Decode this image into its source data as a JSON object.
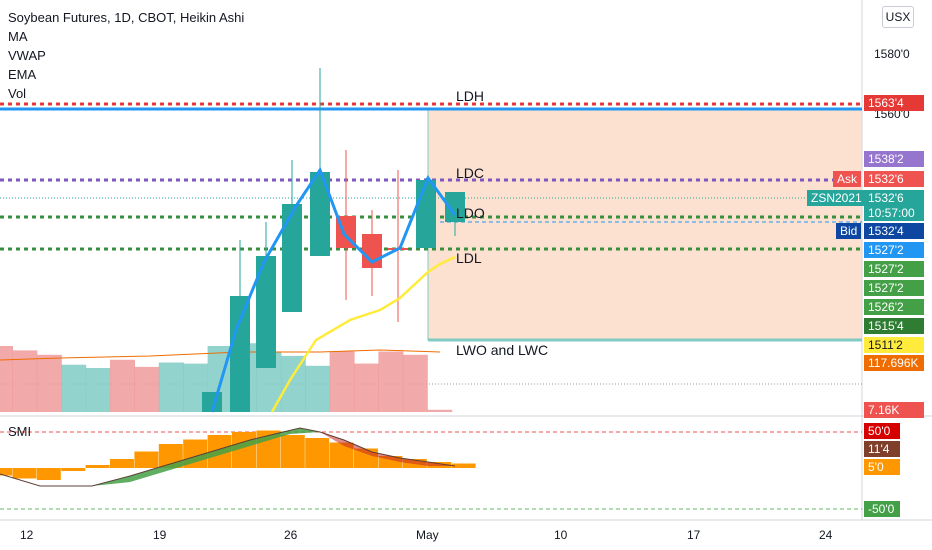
{
  "legend": {
    "title": "Soybean Futures, 1D, CBOT, Heikin Ashi",
    "indicators": [
      "MA",
      "VWAP",
      "EMA",
      "Vol"
    ]
  },
  "currency": "USX",
  "smi_label": "SMI",
  "annotations": {
    "ldh": "LDH",
    "ldc": "LDC",
    "ldo": "LDO",
    "ldl": "LDL",
    "lwo": "LWO and LWC"
  },
  "price_axis": {
    "ticks": [
      "1580'0",
      "1560'0"
    ]
  },
  "x_axis": {
    "labels": [
      "12",
      "19",
      "26",
      "May",
      "10",
      "17",
      "24"
    ]
  },
  "price_labels": [
    {
      "text": "1563'4",
      "color": "#e53935"
    },
    {
      "text": "1538'2",
      "color": "#9575cd"
    },
    {
      "text": "1532'6",
      "color": "#ef5350",
      "tag": "Ask"
    },
    {
      "text": "1532'6",
      "color": "#26a69a",
      "tag": "ZSN2021"
    },
    {
      "text": "10:57:00",
      "color": "#26a69a"
    },
    {
      "text": "1532'4",
      "color": "#0d47a1",
      "tag": "Bid"
    },
    {
      "text": "1527'2",
      "color": "#2196f3"
    },
    {
      "text": "1527'2",
      "color": "#43a047"
    },
    {
      "text": "1527'2",
      "color": "#43a047"
    },
    {
      "text": "1526'2",
      "color": "#43a047"
    },
    {
      "text": "1515'4",
      "color": "#2e7d32"
    },
    {
      "text": "1511'2",
      "color": "#ffeb3b"
    },
    {
      "text": "117.696K",
      "color": "#ef6c00"
    },
    {
      "text": "7.16K",
      "color": "#ef5350"
    }
  ],
  "smi_labels": [
    {
      "text": "50'0",
      "color": "#d50000"
    },
    {
      "text": "11'4",
      "color": "#7f3f2a"
    },
    {
      "text": "5'0",
      "color": "#ff9800"
    },
    {
      "text": "-50'0",
      "color": "#43a047"
    }
  ],
  "chart_data": {
    "type": "candlestick",
    "title": "Soybean Futures, 1D, CBOT, Heikin Ashi",
    "candles": [
      {
        "o": 1450.0,
        "h": 1472.0,
        "l": 1450.0,
        "c": 1464.0
      },
      {
        "o": 1458.0,
        "h": 1518.0,
        "l": 1452.0,
        "c": 1518.0
      },
      {
        "o": 1488.0,
        "h": 1534.0,
        "l": 1476.0,
        "c": 1534.0
      },
      {
        "o": 1510.0,
        "h": 1546.0,
        "l": 1505.0,
        "c": 1546.0
      },
      {
        "o": 1524.0,
        "h": 1554.0,
        "l": 1524.0,
        "c": 1548.0
      },
      {
        "o": 1544.0,
        "h": 1578.0,
        "l": 1520.0,
        "c": 1520.0
      },
      {
        "o": 1532.0,
        "h": 1542.0,
        "l": 1504.0,
        "c": 1524.0
      },
      {
        "o": 1526.0,
        "h": 1534.0,
        "l": 1506.0,
        "c": 1518.0
      },
      {
        "o": 1526.0,
        "h": 1536.0,
        "l": 1510.0,
        "c": 1524.0
      },
      {
        "o": 1526.0,
        "h": 1563.5,
        "l": 1520.0,
        "c": 1546.0
      },
      {
        "o": 1532.6,
        "h": 1540.0,
        "l": 1528.0,
        "c": 1532.6
      }
    ],
    "volume_colors": [
      "red",
      "red",
      "red",
      "green",
      "green",
      "red",
      "red",
      "green",
      "green",
      "green",
      "green",
      "green",
      "green",
      "green",
      "red",
      "red",
      "red",
      "red",
      "red"
    ],
    "volume": [
      120,
      112,
      104,
      86,
      80,
      95,
      82,
      90,
      88,
      120,
      125,
      110,
      102,
      84,
      110,
      88,
      110,
      104,
      4
    ],
    "smi_histogram": [
      -10,
      -14,
      -16,
      -4,
      4,
      12,
      22,
      32,
      38,
      44,
      48,
      50,
      44,
      40,
      34,
      26,
      16,
      12,
      8,
      6
    ],
    "levels": {
      "LDH": 1563.5,
      "LDC": 1538.25,
      "LDO": 1532.5,
      "LDL": 1527.25,
      "LWO and LWC": 1511.25
    }
  }
}
